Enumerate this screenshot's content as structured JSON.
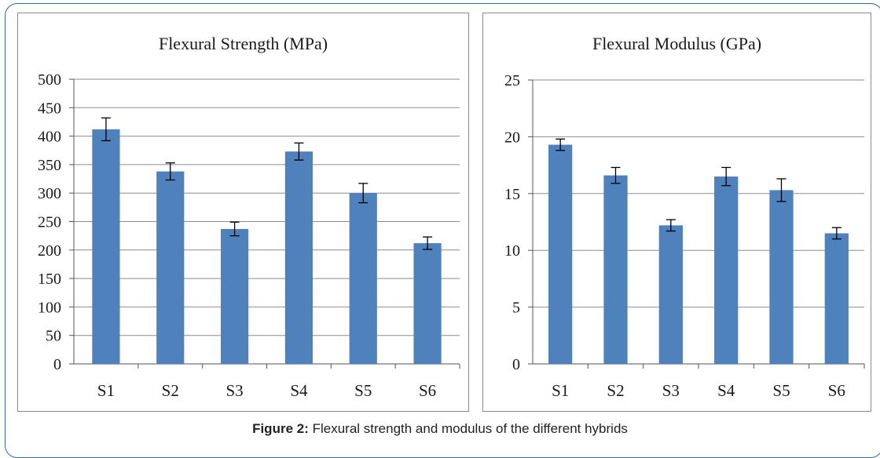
{
  "chart_data": [
    {
      "type": "bar",
      "title": "Flexural Strength (MPa)",
      "categories": [
        "S1",
        "S2",
        "S3",
        "S4",
        "S5",
        "S6"
      ],
      "values": [
        412,
        338,
        237,
        373,
        300,
        212
      ],
      "error": [
        20,
        15,
        12,
        15,
        17,
        11
      ],
      "yticks": [
        "0",
        "50",
        "100",
        "150",
        "200",
        "250",
        "300",
        "350",
        "400",
        "450",
        "500"
      ],
      "ylim": [
        0,
        500
      ],
      "bar_color": "#4f81bd",
      "grid": true,
      "legend": "none"
    },
    {
      "type": "bar",
      "title": "Flexural Modulus (GPa)",
      "categories": [
        "S1",
        "S2",
        "S3",
        "S4",
        "S5",
        "S6"
      ],
      "values": [
        19.3,
        16.6,
        12.2,
        16.5,
        15.3,
        11.5
      ],
      "error": [
        0.5,
        0.7,
        0.5,
        0.8,
        1.0,
        0.5
      ],
      "yticks": [
        "0",
        "5",
        "10",
        "15",
        "20",
        "25"
      ],
      "ylim": [
        0,
        25
      ],
      "bar_color": "#4f81bd",
      "grid": true,
      "legend": "none"
    }
  ],
  "caption": {
    "label": "Figure 2:",
    "text": " Flexural strength and modulus of the different hybrids"
  }
}
